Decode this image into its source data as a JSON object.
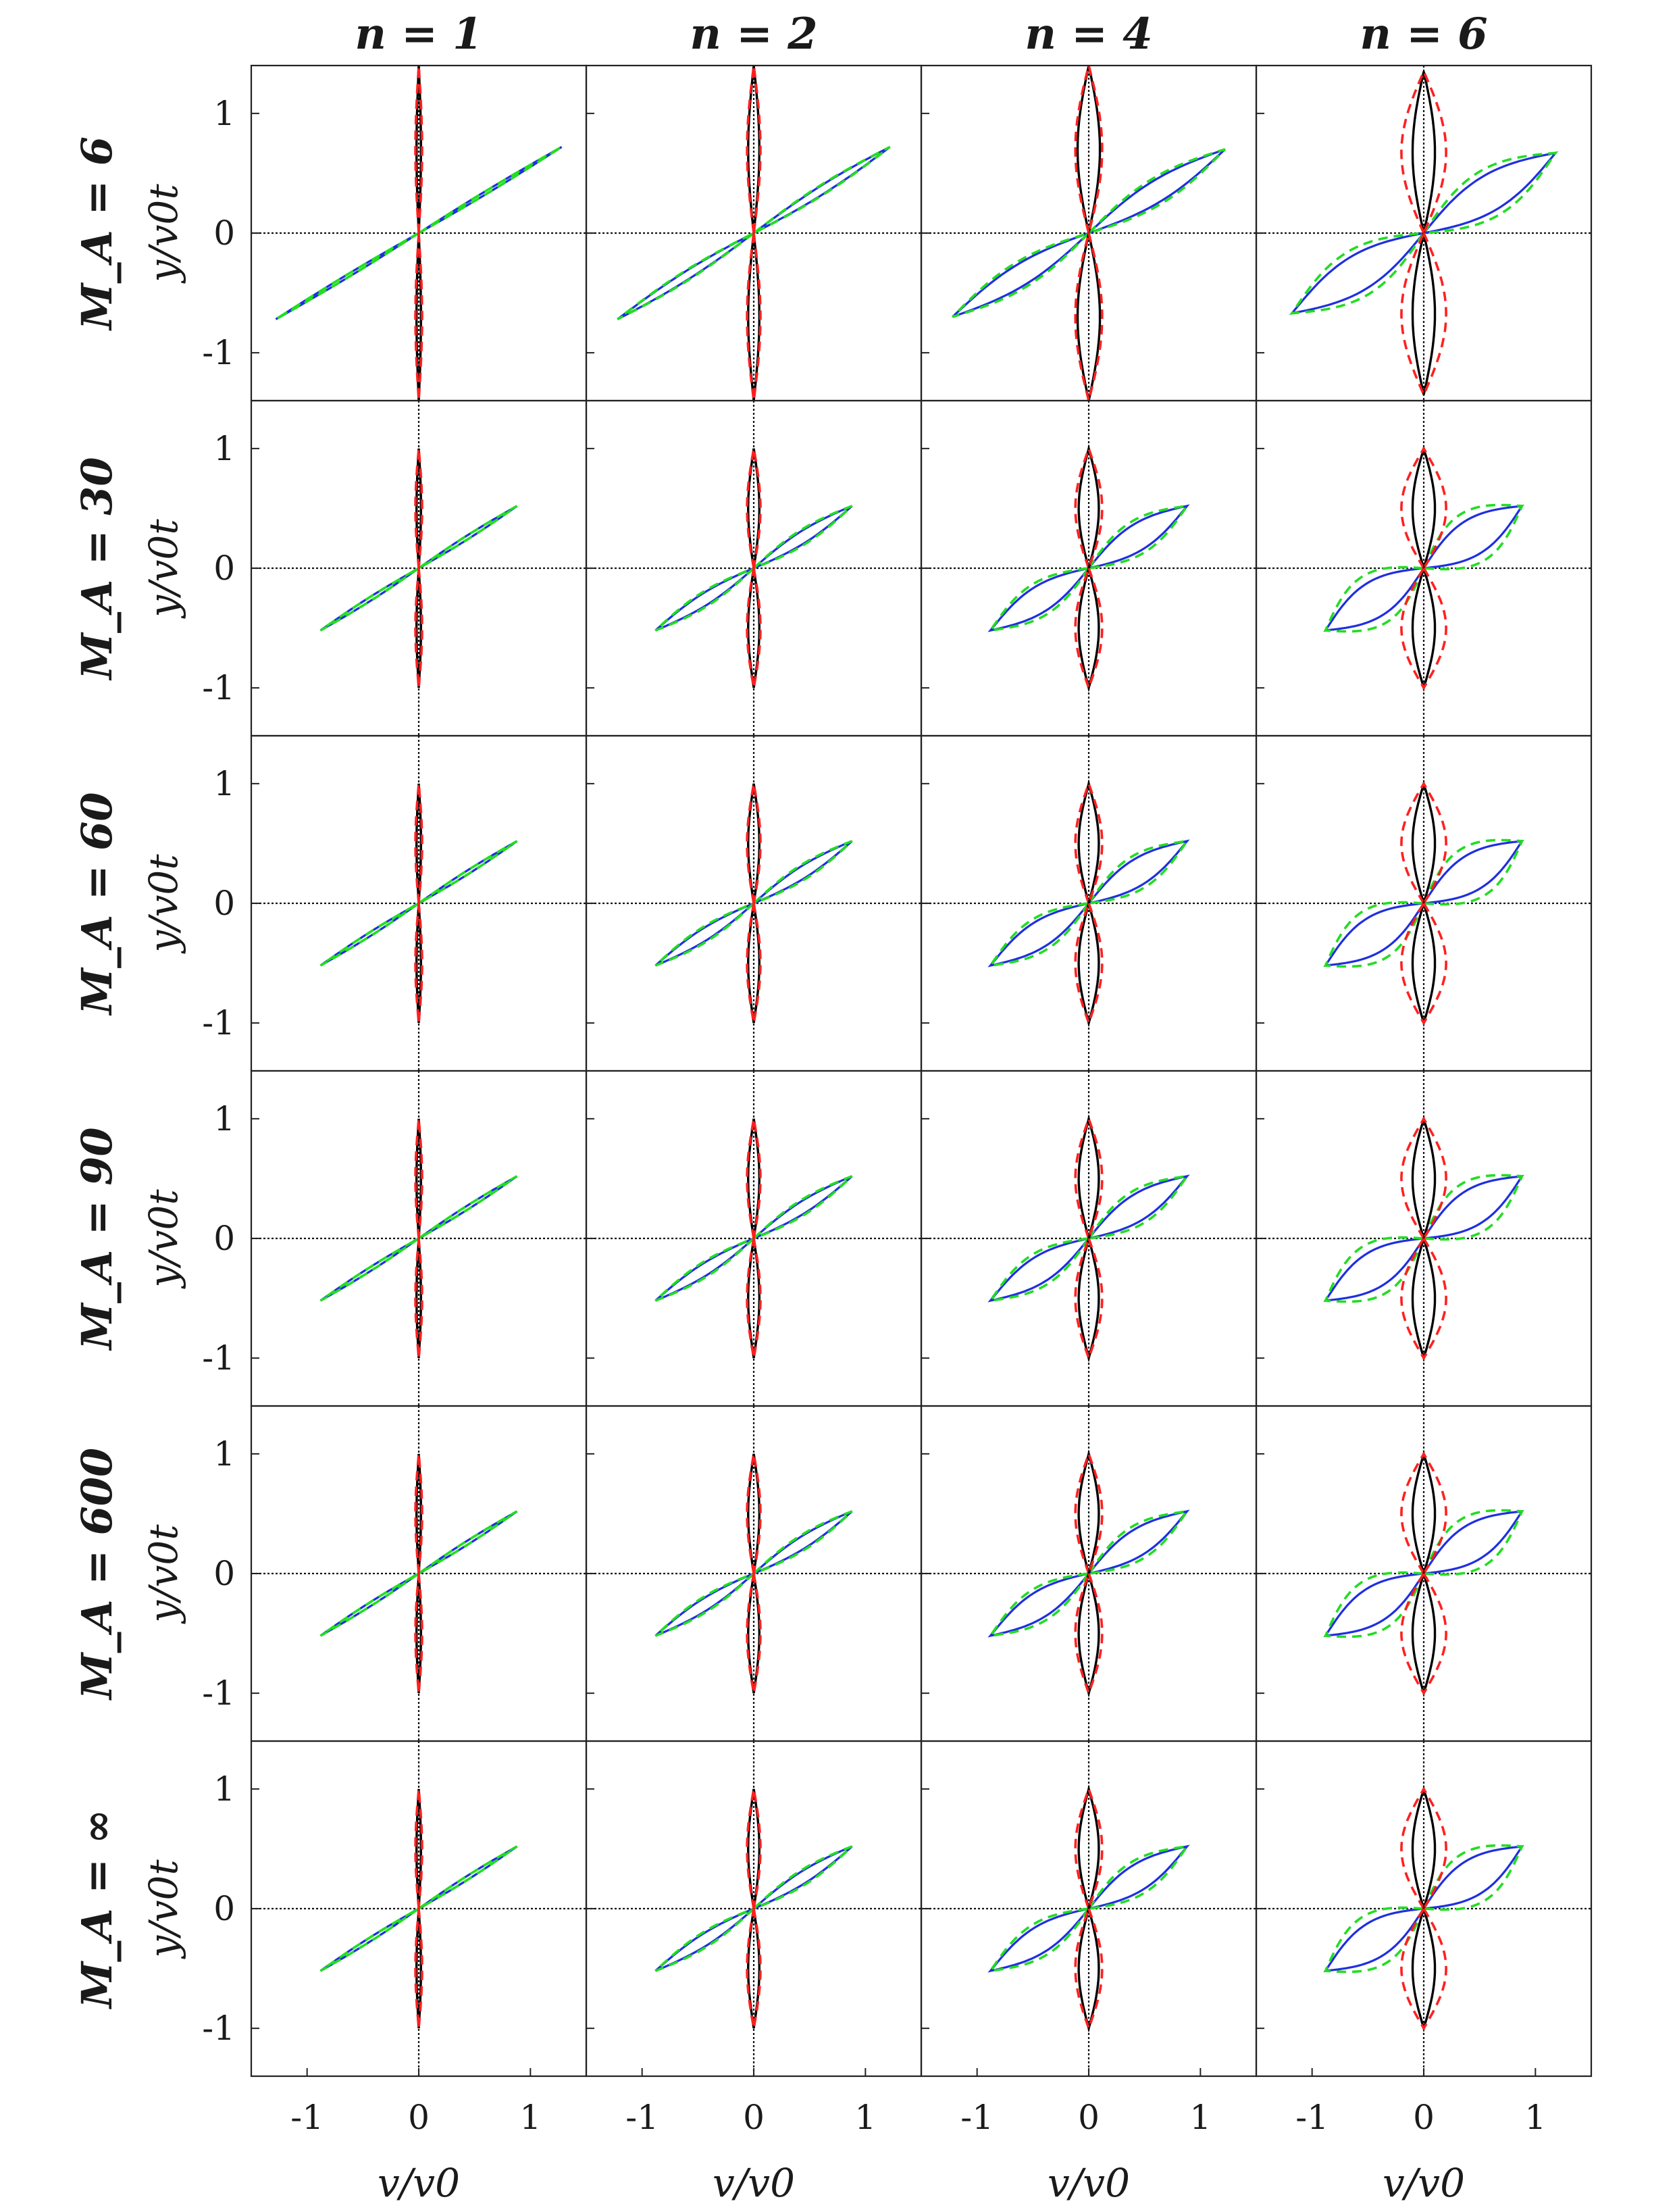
{
  "chart_data": {
    "type": "line",
    "layout": "grid of small multiples, 6 rows x 4 columns",
    "column_titles": [
      "n = 1",
      "n = 2",
      "n = 4",
      "n = 6"
    ],
    "row_titles": [
      "M_A = 6",
      "M_A = 30",
      "M_A = 60",
      "M_A = 90",
      "M_A = 600",
      "M_A = ∞"
    ],
    "ylabel": "y/v0t",
    "xlabel": "v/v0",
    "xlim": [
      -1.5,
      1.5
    ],
    "ylim": [
      -1.4,
      1.4
    ],
    "xticks": [
      -1,
      0,
      1
    ],
    "xtick_labels": [
      "-1",
      "0",
      "1"
    ],
    "yticks": [
      1,
      0,
      -1
    ],
    "ytick_labels": [
      "1",
      "0",
      "-1"
    ],
    "reference_lines": "dotted black at x = 0 and y = 0",
    "series_styles": [
      {
        "lobe": "vertical",
        "color": "#000000",
        "dash": "solid"
      },
      {
        "lobe": "vertical",
        "color": "#ff2020",
        "dash": "dashed"
      },
      {
        "lobe": "diagonal",
        "color": "#1f2fe0",
        "dash": "solid"
      },
      {
        "lobe": "diagonal",
        "color": "#22dd22",
        "dash": "dashed"
      }
    ],
    "panels": [
      [
        {
          "vert_h": 1.4,
          "vert_w_black": 0.02,
          "vert_w_red": 0.03,
          "diag_x": 1.28,
          "diag_y": 0.72,
          "diag_w_blue": 0.012,
          "diag_w_green": 0.012
        },
        {
          "vert_h": 1.4,
          "vert_w_black": 0.05,
          "vert_w_red": 0.06,
          "diag_x": 1.22,
          "diag_y": 0.72,
          "diag_w_blue": 0.035,
          "diag_w_green": 0.04
        },
        {
          "vert_h": 1.4,
          "vert_w_black": 0.1,
          "vert_w_red": 0.12,
          "diag_x": 1.22,
          "diag_y": 0.7,
          "diag_w_blue": 0.09,
          "diag_w_green": 0.11
        },
        {
          "vert_h": 1.35,
          "vert_w_black": 0.1,
          "vert_w_red": 0.2,
          "diag_x": 1.18,
          "diag_y": 0.67,
          "diag_w_blue": 0.15,
          "diag_w_green": 0.2
        }
      ],
      [
        {
          "vert_h": 1.0,
          "vert_w_black": 0.02,
          "vert_w_red": 0.03,
          "diag_x": 0.88,
          "diag_y": 0.52,
          "diag_w_blue": 0.015,
          "diag_w_green": 0.015
        },
        {
          "vert_h": 1.0,
          "vert_w_black": 0.05,
          "vert_w_red": 0.06,
          "diag_x": 0.88,
          "diag_y": 0.52,
          "diag_w_blue": 0.05,
          "diag_w_green": 0.06
        },
        {
          "vert_h": 1.0,
          "vert_w_black": 0.09,
          "vert_w_red": 0.12,
          "diag_x": 0.88,
          "diag_y": 0.52,
          "diag_w_blue": 0.11,
          "diag_w_green": 0.14
        },
        {
          "vert_h": 1.0,
          "vert_w_black": 0.1,
          "vert_w_red": 0.2,
          "diag_x": 0.88,
          "diag_y": 0.52,
          "diag_w_blue": 0.15,
          "diag_w_green": 0.22
        }
      ],
      [
        {
          "vert_h": 1.0,
          "vert_w_black": 0.02,
          "vert_w_red": 0.03,
          "diag_x": 0.88,
          "diag_y": 0.52,
          "diag_w_blue": 0.015,
          "diag_w_green": 0.015
        },
        {
          "vert_h": 1.0,
          "vert_w_black": 0.05,
          "vert_w_red": 0.06,
          "diag_x": 0.88,
          "diag_y": 0.52,
          "diag_w_blue": 0.05,
          "diag_w_green": 0.06
        },
        {
          "vert_h": 1.0,
          "vert_w_black": 0.09,
          "vert_w_red": 0.12,
          "diag_x": 0.88,
          "diag_y": 0.52,
          "diag_w_blue": 0.11,
          "diag_w_green": 0.14
        },
        {
          "vert_h": 1.0,
          "vert_w_black": 0.1,
          "vert_w_red": 0.2,
          "diag_x": 0.88,
          "diag_y": 0.52,
          "diag_w_blue": 0.15,
          "diag_w_green": 0.22
        }
      ],
      [
        {
          "vert_h": 1.0,
          "vert_w_black": 0.02,
          "vert_w_red": 0.03,
          "diag_x": 0.88,
          "diag_y": 0.52,
          "diag_w_blue": 0.015,
          "diag_w_green": 0.015
        },
        {
          "vert_h": 1.0,
          "vert_w_black": 0.05,
          "vert_w_red": 0.06,
          "diag_x": 0.88,
          "diag_y": 0.52,
          "diag_w_blue": 0.05,
          "diag_w_green": 0.06
        },
        {
          "vert_h": 1.0,
          "vert_w_black": 0.09,
          "vert_w_red": 0.12,
          "diag_x": 0.88,
          "diag_y": 0.52,
          "diag_w_blue": 0.11,
          "diag_w_green": 0.14
        },
        {
          "vert_h": 1.0,
          "vert_w_black": 0.1,
          "vert_w_red": 0.2,
          "diag_x": 0.88,
          "diag_y": 0.52,
          "diag_w_blue": 0.15,
          "diag_w_green": 0.22
        }
      ],
      [
        {
          "vert_h": 1.0,
          "vert_w_black": 0.02,
          "vert_w_red": 0.03,
          "diag_x": 0.88,
          "diag_y": 0.52,
          "diag_w_blue": 0.015,
          "diag_w_green": 0.015
        },
        {
          "vert_h": 1.0,
          "vert_w_black": 0.05,
          "vert_w_red": 0.06,
          "diag_x": 0.88,
          "diag_y": 0.52,
          "diag_w_blue": 0.05,
          "diag_w_green": 0.06
        },
        {
          "vert_h": 1.0,
          "vert_w_black": 0.09,
          "vert_w_red": 0.12,
          "diag_x": 0.88,
          "diag_y": 0.52,
          "diag_w_blue": 0.11,
          "diag_w_green": 0.14
        },
        {
          "vert_h": 1.0,
          "vert_w_black": 0.1,
          "vert_w_red": 0.2,
          "diag_x": 0.88,
          "diag_y": 0.52,
          "diag_w_blue": 0.15,
          "diag_w_green": 0.22
        }
      ],
      [
        {
          "vert_h": 1.0,
          "vert_w_black": 0.02,
          "vert_w_red": 0.03,
          "diag_x": 0.88,
          "diag_y": 0.52,
          "diag_w_blue": 0.015,
          "diag_w_green": 0.015
        },
        {
          "vert_h": 1.0,
          "vert_w_black": 0.05,
          "vert_w_red": 0.06,
          "diag_x": 0.88,
          "diag_y": 0.52,
          "diag_w_blue": 0.05,
          "diag_w_green": 0.06
        },
        {
          "vert_h": 1.0,
          "vert_w_black": 0.09,
          "vert_w_red": 0.12,
          "diag_x": 0.88,
          "diag_y": 0.52,
          "diag_w_blue": 0.11,
          "diag_w_green": 0.14
        },
        {
          "vert_h": 1.0,
          "vert_w_black": 0.1,
          "vert_w_red": 0.2,
          "diag_x": 0.88,
          "diag_y": 0.52,
          "diag_w_blue": 0.15,
          "diag_w_green": 0.22
        }
      ]
    ]
  }
}
